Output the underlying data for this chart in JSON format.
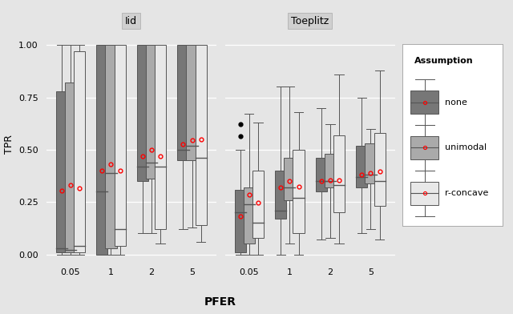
{
  "title_iid": "Iid",
  "title_toeplitz": "Toeplitz",
  "xlabel": "PFER",
  "ylabel": "TPR",
  "pfer_labels": [
    "0.05",
    "1",
    "2",
    "5"
  ],
  "assumptions": [
    "none",
    "unimodal",
    "r-concave"
  ],
  "colors": {
    "none": "#777777",
    "unimodal": "#aaaaaa",
    "r-concave": "#e8e8e8"
  },
  "background_color": "#e5e5e5",
  "panel_background": "#e5e5e5",
  "ylim": [
    -0.03,
    1.08
  ],
  "yticks": [
    0.0,
    0.25,
    0.5,
    0.75,
    1.0
  ],
  "iid": {
    "none": {
      "0.05": {
        "q1": 0.01,
        "median": 0.03,
        "q3": 0.78,
        "whislo": 0.0,
        "whishi": 1.0,
        "mean": 0.305,
        "fliers": []
      },
      "1": {
        "q1": 0.0,
        "median": 0.3,
        "q3": 1.0,
        "whislo": 0.0,
        "whishi": 1.0,
        "mean": 0.4,
        "fliers": []
      },
      "2": {
        "q1": 0.35,
        "median": 0.42,
        "q3": 1.0,
        "whislo": 0.1,
        "whishi": 1.0,
        "mean": 0.47,
        "fliers": []
      },
      "5": {
        "q1": 0.45,
        "median": 0.5,
        "q3": 1.0,
        "whislo": 0.12,
        "whishi": 1.0,
        "mean": 0.525,
        "fliers": []
      }
    },
    "unimodal": {
      "0.05": {
        "q1": 0.01,
        "median": 0.02,
        "q3": 0.82,
        "whislo": 0.0,
        "whishi": 1.0,
        "mean": 0.33,
        "fliers": []
      },
      "1": {
        "q1": 0.03,
        "median": 0.39,
        "q3": 1.0,
        "whislo": 0.0,
        "whishi": 1.0,
        "mean": 0.43,
        "fliers": []
      },
      "2": {
        "q1": 0.36,
        "median": 0.44,
        "q3": 1.0,
        "whislo": 0.1,
        "whishi": 1.0,
        "mean": 0.5,
        "fliers": []
      },
      "5": {
        "q1": 0.45,
        "median": 0.52,
        "q3": 1.0,
        "whislo": 0.13,
        "whishi": 1.0,
        "mean": 0.545,
        "fliers": []
      }
    },
    "r-concave": {
      "0.05": {
        "q1": 0.01,
        "median": 0.04,
        "q3": 0.97,
        "whislo": 0.0,
        "whishi": 1.0,
        "mean": 0.315,
        "fliers": []
      },
      "1": {
        "q1": 0.04,
        "median": 0.12,
        "q3": 1.0,
        "whislo": 0.0,
        "whishi": 1.0,
        "mean": 0.4,
        "fliers": []
      },
      "2": {
        "q1": 0.12,
        "median": 0.42,
        "q3": 1.0,
        "whislo": 0.05,
        "whishi": 1.0,
        "mean": 0.47,
        "fliers": []
      },
      "5": {
        "q1": 0.14,
        "median": 0.46,
        "q3": 1.0,
        "whislo": 0.06,
        "whishi": 1.0,
        "mean": 0.55,
        "fliers": []
      }
    }
  },
  "toeplitz": {
    "none": {
      "0.05": {
        "q1": 0.01,
        "median": 0.2,
        "q3": 0.31,
        "whislo": 0.0,
        "whishi": 0.5,
        "mean": 0.18,
        "fliers": [
          0.62,
          0.565
        ]
      },
      "1": {
        "q1": 0.17,
        "median": 0.21,
        "q3": 0.4,
        "whislo": 0.0,
        "whishi": 0.8,
        "mean": 0.32,
        "fliers": []
      },
      "2": {
        "q1": 0.3,
        "median": 0.35,
        "q3": 0.46,
        "whislo": 0.07,
        "whishi": 0.7,
        "mean": 0.35,
        "fliers": []
      },
      "5": {
        "q1": 0.32,
        "median": 0.37,
        "q3": 0.52,
        "whislo": 0.1,
        "whishi": 0.75,
        "mean": 0.38,
        "fliers": []
      }
    },
    "unimodal": {
      "0.05": {
        "q1": 0.05,
        "median": 0.24,
        "q3": 0.32,
        "whislo": 0.0,
        "whishi": 0.67,
        "mean": 0.285,
        "fliers": []
      },
      "1": {
        "q1": 0.26,
        "median": 0.32,
        "q3": 0.46,
        "whislo": 0.05,
        "whishi": 0.8,
        "mean": 0.35,
        "fliers": []
      },
      "2": {
        "q1": 0.32,
        "median": 0.35,
        "q3": 0.48,
        "whislo": 0.08,
        "whishi": 0.62,
        "mean": 0.355,
        "fliers": []
      },
      "5": {
        "q1": 0.34,
        "median": 0.38,
        "q3": 0.53,
        "whislo": 0.12,
        "whishi": 0.6,
        "mean": 0.39,
        "fliers": []
      }
    },
    "r-concave": {
      "0.05": {
        "q1": 0.08,
        "median": 0.15,
        "q3": 0.4,
        "whislo": 0.0,
        "whishi": 0.63,
        "mean": 0.245,
        "fliers": []
      },
      "1": {
        "q1": 0.1,
        "median": 0.27,
        "q3": 0.5,
        "whislo": 0.0,
        "whishi": 0.68,
        "mean": 0.325,
        "fliers": []
      },
      "2": {
        "q1": 0.2,
        "median": 0.33,
        "q3": 0.57,
        "whislo": 0.05,
        "whishi": 0.86,
        "mean": 0.355,
        "fliers": []
      },
      "5": {
        "q1": 0.23,
        "median": 0.35,
        "q3": 0.58,
        "whislo": 0.07,
        "whishi": 0.88,
        "mean": 0.395,
        "fliers": []
      }
    }
  }
}
